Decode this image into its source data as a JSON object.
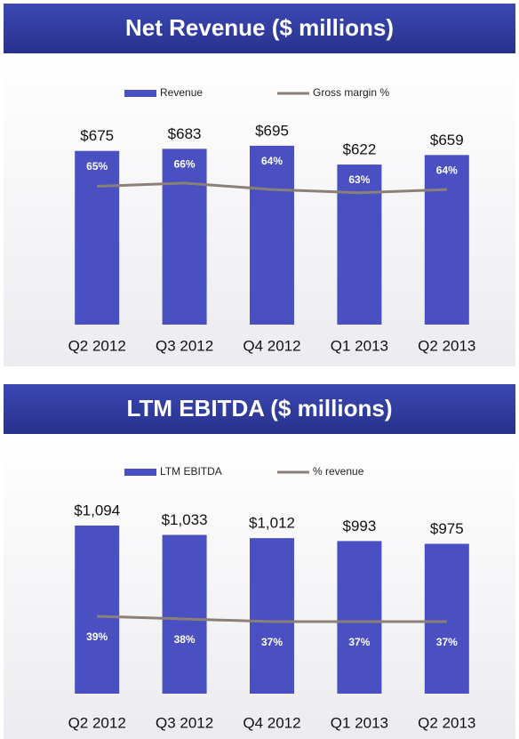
{
  "chart_data": [
    {
      "type": "bar",
      "title": "Net Revenue ($ millions)",
      "categories": [
        "Q2 2012",
        "Q3 2012",
        "Q4 2012",
        "Q1 2013",
        "Q2 2013"
      ],
      "series": [
        {
          "name": "Revenue",
          "color": "#4a50c2",
          "values": [
            675,
            683,
            695,
            622,
            659
          ],
          "value_labels": [
            "$675",
            "$683",
            "$695",
            "$622",
            "$659"
          ]
        },
        {
          "name": "Gross margin %",
          "type": "line",
          "axis": "y2",
          "color": "#8a8078",
          "values": [
            65,
            66,
            64,
            63,
            64
          ],
          "value_labels": [
            "65%",
            "66%",
            "64%",
            "63%",
            "64%"
          ]
        }
      ],
      "ylim": [
        0,
        750
      ],
      "y2lim": [
        22,
        82
      ]
    },
    {
      "type": "bar",
      "title": "LTM EBITDA ($ millions)",
      "categories": [
        "Q2 2012",
        "Q3 2012",
        "Q4 2012",
        "Q1 2013",
        "Q2 2013"
      ],
      "series": [
        {
          "name": "LTM EBITDA",
          "color": "#4a50c2",
          "values": [
            1094,
            1033,
            1012,
            993,
            975
          ],
          "value_labels": [
            "$1,094",
            "$1,033",
            "$1,012",
            "$993",
            "$975"
          ]
        },
        {
          "name": "% revenue",
          "type": "line",
          "axis": "y2",
          "color": "#8a8078",
          "values": [
            39,
            38,
            37,
            37,
            37
          ],
          "value_labels": [
            "39%",
            "38%",
            "37%",
            "37%",
            "37%"
          ]
        }
      ],
      "ylim": [
        0,
        1250
      ],
      "y2lim": [
        10,
        82
      ]
    }
  ]
}
